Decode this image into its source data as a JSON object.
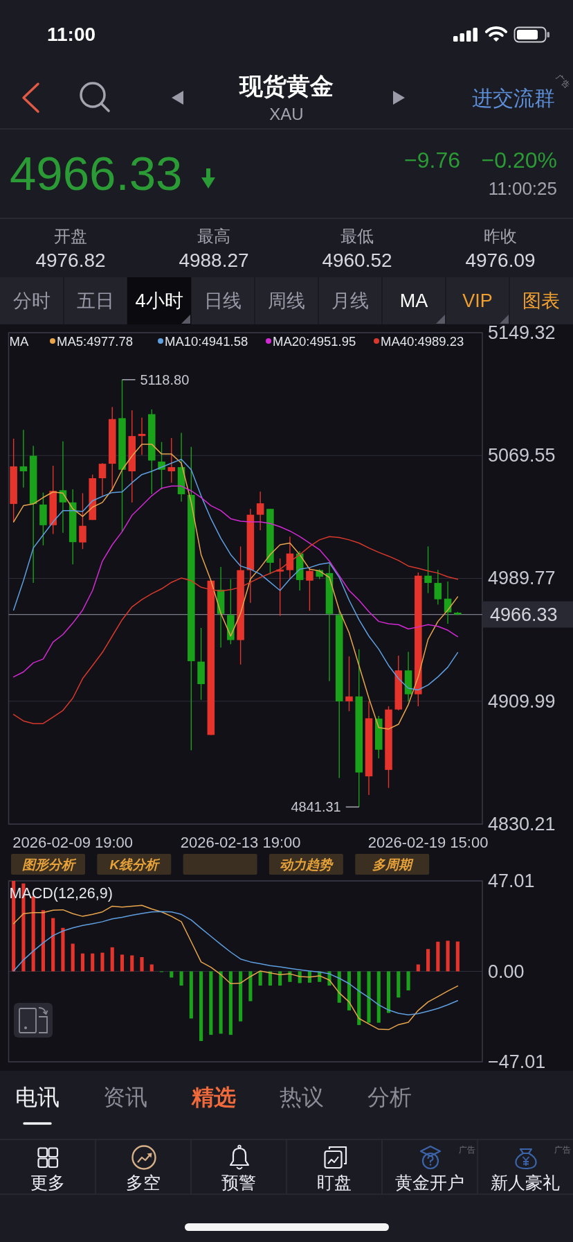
{
  "chart_data": [
    {
      "type": "other",
      "title": "现货黄金",
      "subtitle": "XAU",
      "annotations": [
        "11:00",
        "进交流群",
        "广告",
        "4966.33",
        "−9.76",
        "−0.20%",
        "11:00:25"
      ]
    },
    {
      "type": "other",
      "categories": [
        "开盘",
        "最高",
        "最低",
        "昨收"
      ],
      "values": [
        4976.82,
        4988.27,
        4960.52,
        4976.09
      ],
      "data_labels": true
    },
    {
      "type": "other",
      "annotations": [
        "分时",
        "五日",
        "4小时",
        "日线",
        "周线",
        "月线",
        "MA",
        "VIP",
        "图表"
      ]
    },
    {
      "type": "candlestick",
      "categories": [
        null,
        null,
        null,
        null,
        null,
        null,
        "2026-02-09 19:00",
        null,
        null,
        null,
        null,
        null,
        null,
        null,
        null,
        null,
        null,
        null,
        null,
        null,
        null,
        null,
        null,
        "2026-02-13 19:00",
        null,
        null,
        null,
        null,
        null,
        null,
        null,
        null,
        null,
        null,
        null,
        null,
        null,
        null,
        null,
        null,
        null,
        null,
        "2026-02-19 15:00",
        null,
        null,
        null
      ],
      "ohlc": [
        [
          5038.1,
          5080.5,
          5026.4,
          5062.5
        ],
        [
          5062.5,
          5086.2,
          5048.7,
          5059.3
        ],
        [
          5069.4,
          5075.8,
          4986.8,
          5038.1
        ],
        [
          5037.7,
          5045.5,
          5011.2,
          5024.3
        ],
        [
          5024.3,
          5062.9,
          5018.6,
          5046.6
        ],
        [
          5047.0,
          5078.8,
          5019.4,
          5039.1
        ],
        [
          5039.1,
          5047.6,
          4998.9,
          5013.3
        ],
        [
          5013.1,
          5045.1,
          5008.8,
          5023.9
        ],
        [
          5027.7,
          5057.2,
          5027.7,
          5054.8
        ],
        [
          5054.8,
          5064.6,
          5043.4,
          5064.2
        ],
        [
          5064.2,
          5101.0,
          5046.6,
          5093.2
        ],
        [
          5093.8,
          5118.8,
          5020.1,
          5060.3
        ],
        [
          5059.3,
          5098.9,
          5039.1,
          5082.2
        ],
        [
          5082.2,
          5094.2,
          5069.9,
          5083.6
        ],
        [
          5096.4,
          5099.5,
          5044.4,
          5066.3
        ],
        [
          5065.6,
          5078.3,
          5047.6,
          5060.3
        ],
        [
          5059.3,
          5080.9,
          5051.9,
          5062.0
        ],
        [
          5062.0,
          5084.3,
          5039.6,
          5044.4
        ],
        [
          5044.0,
          5075.2,
          4878.1,
          4936.0
        ],
        [
          4935.7,
          4957.6,
          4910.9,
          4921.1
        ],
        [
          4888.1,
          4988.3,
          4888.1,
          4988.3
        ],
        [
          4982.4,
          4997.2,
          4944.9,
          4966.7
        ],
        [
          4966.0,
          4989.3,
          4947.0,
          4949.7
        ],
        [
          4949.7,
          5010.5,
          4933.8,
          4995.1
        ],
        [
          4995.1,
          5034.9,
          4973.9,
          5031.1
        ],
        [
          5031.1,
          5046.1,
          5021.1,
          5038.5
        ],
        [
          5034.9,
          5034.9,
          4992.5,
          4999.9
        ],
        [
          4994.2,
          5002.7,
          4965.4,
          4995.5
        ],
        [
          4995.1,
          5016.9,
          4989.3,
          5005.9
        ],
        [
          5005.9,
          5007.4,
          4981.9,
          4988.7
        ],
        [
          4988.3,
          4996.8,
          4968.8,
          4994.6
        ],
        [
          4995.1,
          4995.7,
          4989.3,
          4990.8
        ],
        [
          4993.2,
          4998.9,
          4923.0,
          4966.7
        ],
        [
          4966.0,
          4969.2,
          4860.1,
          4909.9
        ],
        [
          4909.9,
          4939.1,
          4903.5,
          4913.1
        ],
        [
          4913.1,
          4943.8,
          4841.31,
          4863.7
        ],
        [
          4861.2,
          4909.9,
          4849.1,
          4898.9
        ],
        [
          4898.7,
          4900.4,
          4872.8,
          4878.5
        ],
        [
          4865.4,
          4906.7,
          4853.7,
          4904.6
        ],
        [
          4904.6,
          4939.6,
          4904.0,
          4930.0
        ],
        [
          4930.0,
          4942.1,
          4909.9,
          4914.5
        ],
        [
          4914.5,
          4993.6,
          4906.7,
          4991.5
        ],
        [
          4991.5,
          5010.5,
          4980.2,
          4986.8
        ],
        [
          4986.8,
          4995.3,
          4972.8,
          4976.2
        ],
        [
          4976.6,
          4987.7,
          4960.3,
          4967.7
        ],
        [
          4967.5,
          4968.0,
          4966.0,
          4966.33
        ]
      ],
      "colors": [
        "#e5342b",
        "#1aa31a",
        "#1aa31a",
        "#1aa31a",
        "#e5342b",
        "#1aa31a",
        "#1aa31a",
        "#e5342b",
        "#e5342b",
        "#e5342b",
        "#e5342b",
        "#1aa31a",
        "#e5342b",
        "#e5342b",
        "#1aa31a",
        "#1aa31a",
        "#e5342b",
        "#1aa31a",
        "#1aa31a",
        "#1aa31a",
        "#e5342b",
        "#1aa31a",
        "#1aa31a",
        "#e5342b",
        "#e5342b",
        "#e5342b",
        "#1aa31a",
        "#e5342b",
        "#e5342b",
        "#1aa31a",
        "#e5342b",
        "#1aa31a",
        "#1aa31a",
        "#1aa31a",
        "#e5342b",
        "#1aa31a",
        "#e5342b",
        "#1aa31a",
        "#e5342b",
        "#e5342b",
        "#1aa31a",
        "#e5342b",
        "#1aa31a",
        "#1aa31a",
        "#1aa31a",
        "#1aa31a"
      ],
      "series": [
        {
          "type": "line",
          "name": "MA5:4977.78",
          "color": "#e8a54c",
          "values": [
            5026.4,
            5037.0,
            5038.1,
            5042.3,
            5045.9,
            5045.1,
            5034.9,
            5030.0,
            5036.0,
            5039.1,
            5047.6,
            5060.3,
            5069.2,
            5076.9,
            5076.9,
            5070.5,
            5070.5,
            5064.6,
            5039.1,
            5005.2,
            4988.3,
            4967.1,
            4952.3,
            4967.1,
            4989.3,
            4996.8,
            5005.2,
            5011.6,
            5012.7,
            5005.2,
            4995.7,
            4994.6,
            4990.4,
            4969.2,
            4954.4,
            4933.2,
            4912.0,
            4892.9,
            4891.9,
            4895.0,
            4907.8,
            4925.8,
            4950.2,
            4961.8,
            4969.2,
            4977.78
          ]
        },
        {
          "type": "line",
          "name": "MA10:4941.58",
          "color": "#5f9fe0",
          "values": [
            4969.2,
            4988.3,
            5009.5,
            5018.0,
            5026.4,
            5033.8,
            5033.8,
            5033.2,
            5040.2,
            5043.0,
            5045.5,
            5045.9,
            5051.9,
            5057.2,
            5059.3,
            5062.0,
            5064.6,
            5067.1,
            5060.3,
            5043.4,
            5028.5,
            5015.8,
            5005.2,
            4997.8,
            4995.7,
            4992.5,
            4987.2,
            4981.9,
            4989.3,
            4995.7,
            4996.8,
            4998.9,
            4999.9,
            4990.4,
            4975.6,
            4962.9,
            4952.3,
            4943.8,
            4933.2,
            4924.7,
            4918.4,
            4917.3,
            4920.5,
            4925.8,
            4932.1,
            4941.58
          ]
        },
        {
          "type": "line",
          "name": "MA20:4951.95",
          "color": "#d42ad4",
          "values": [
            4925.8,
            4929.0,
            4934.9,
            4937.4,
            4948.4,
            4953.3,
            4960.7,
            4969.2,
            4981.9,
            5001.0,
            5011.6,
            5020.1,
            5030.7,
            5037.0,
            5043.4,
            5048.3,
            5049.7,
            5049.7,
            5046.6,
            5042.3,
            5037.0,
            5033.8,
            5028.5,
            5026.9,
            5026.4,
            5026.4,
            5025.4,
            5023.3,
            5020.5,
            5016.9,
            5012.7,
            5008.4,
            5001.0,
            4991.5,
            4981.9,
            4975.6,
            4968.2,
            4961.8,
            4960.3,
            4959.7,
            4956.9,
            4958.2,
            4959.7,
            4958.6,
            4956.1,
            4951.95
          ]
        },
        {
          "type": "line",
          "name": "MA40:4989.23",
          "color": "#d8392c",
          "values": [
            4901.4,
            4897.2,
            4895.5,
            4895.5,
            4899.7,
            4904.0,
            4912.0,
            4924.7,
            4933.2,
            4941.7,
            4952.3,
            4962.9,
            4971.3,
            4976.0,
            4979.8,
            4983.0,
            4987.2,
            4990.0,
            4988.3,
            4984.0,
            4982.4,
            4981.5,
            4982.4,
            4984.0,
            4987.2,
            4990.4,
            4993.0,
            4995.7,
            5000.6,
            5005.2,
            5010.5,
            5014.8,
            5016.9,
            5016.3,
            5014.8,
            5012.7,
            5009.5,
            5006.7,
            5004.2,
            5001.4,
            4997.8,
            4996.3,
            4994.6,
            4993.2,
            4990.8,
            4989.23
          ]
        }
      ],
      "legend_title": "MA",
      "legend": "top left",
      "ylim": [
        4830.21,
        5149.32
      ],
      "yticks": [
        4830.21,
        4909.99,
        4989.77,
        5069.55,
        5149.32
      ],
      "grid": "y",
      "ref_lines": [
        {
          "axis": "y",
          "value": 4966.33,
          "label": "4966.33",
          "color": "#7c7c8a"
        }
      ],
      "annotations": [
        "5118.80",
        "4841.31"
      ]
    },
    {
      "type": "other",
      "annotations": [
        "图形分析",
        "K线分析",
        "动力趋势",
        "多周期"
      ]
    },
    {
      "type": "bar",
      "title": "MACD(12,26,9)",
      "categories": [
        null,
        null,
        null,
        null,
        null,
        null,
        null,
        null,
        null,
        null,
        null,
        null,
        null,
        null,
        null,
        null,
        null,
        null,
        null,
        null,
        null,
        null,
        null,
        null,
        null,
        null,
        null,
        null,
        null,
        null,
        null,
        null,
        null,
        null,
        null,
        null,
        null,
        null,
        null,
        null,
        null,
        null,
        null,
        null,
        null,
        null
      ],
      "series": [
        {
          "type": "bar",
          "values": [
            47.0,
            45.7,
            39.0,
            31.8,
            27.7,
            22.6,
            14.4,
            9.3,
            9.3,
            9.7,
            12.5,
            8.7,
            8.3,
            7.4,
            3.6,
            -0.4,
            -3.2,
            -7.4,
            -24.5,
            -36.2,
            -33.0,
            -32.4,
            -33.0,
            -26.0,
            -15.5,
            -7.4,
            -7.4,
            -7.4,
            -5.5,
            -6.1,
            -5.9,
            -5.5,
            -7.4,
            -16.3,
            -20.3,
            -27.9,
            -26.7,
            -26.7,
            -21.6,
            -13.6,
            -9.9,
            3.6,
            11.6,
            15.4,
            15.9,
            15.5
          ],
          "colors": [
            "#e5342b",
            "#e5342b",
            "#e5342b",
            "#e5342b",
            "#e5342b",
            "#e5342b",
            "#e5342b",
            "#e5342b",
            "#e5342b",
            "#e5342b",
            "#e5342b",
            "#e5342b",
            "#e5342b",
            "#e5342b",
            "#e5342b",
            "#1aa31a",
            "#1aa31a",
            "#1aa31a",
            "#1aa31a",
            "#1aa31a",
            "#1aa31a",
            "#1aa31a",
            "#1aa31a",
            "#1aa31a",
            "#1aa31a",
            "#1aa31a",
            "#1aa31a",
            "#1aa31a",
            "#1aa31a",
            "#1aa31a",
            "#1aa31a",
            "#1aa31a",
            "#1aa31a",
            "#1aa31a",
            "#1aa31a",
            "#1aa31a",
            "#1aa31a",
            "#1aa31a",
            "#1aa31a",
            "#1aa31a",
            "#1aa31a",
            "#e5342b",
            "#e5342b",
            "#e5342b",
            "#e5342b",
            "#e5342b"
          ]
        },
        {
          "type": "line",
          "color": "#e8a54c",
          "values": [
            24.8,
            30.0,
            30.5,
            30.5,
            31.8,
            32.0,
            30.0,
            28.6,
            29.6,
            30.9,
            33.9,
            33.4,
            33.9,
            34.3,
            32.4,
            30.9,
            28.6,
            25.8,
            15.4,
            4.9,
            2.1,
            -1.7,
            -6.4,
            -6.1,
            -2.7,
            0.2,
            -0.8,
            -1.7,
            -1.3,
            -2.7,
            -3.0,
            -2.3,
            -4.5,
            -11.2,
            -15.9,
            -24.5,
            -27.3,
            -30.1,
            -30.3,
            -27.7,
            -26.5,
            -20.3,
            -15.9,
            -13.1,
            -10.2,
            -7.6
          ]
        },
        {
          "type": "line",
          "color": "#5f9fe0",
          "values": [
            0.2,
            5.9,
            10.6,
            14.8,
            18.6,
            21.0,
            22.6,
            23.9,
            24.8,
            25.8,
            27.3,
            28.1,
            29.2,
            30.1,
            30.9,
            31.1,
            30.9,
            29.6,
            26.7,
            22.4,
            18.2,
            14.0,
            10.0,
            6.4,
            4.9,
            4.0,
            3.0,
            2.3,
            1.5,
            0.8,
            0.2,
            -0.4,
            -1.3,
            -3.6,
            -6.4,
            -10.2,
            -13.6,
            -17.4,
            -20.1,
            -21.8,
            -22.6,
            -22.0,
            -20.7,
            -19.3,
            -17.4,
            -15.2
          ]
        }
      ],
      "ylim": [
        -47.01,
        47.01
      ],
      "yticks": [
        {
          "value": -47.01,
          "label": "−47.01"
        },
        {
          "value": 0,
          "label": "0.00"
        },
        47.01
      ],
      "grid": "y"
    },
    {
      "type": "other",
      "annotations": [
        "电讯",
        "资讯",
        "精选",
        "热议",
        "分析",
        "更多",
        "多空",
        "预警",
        "盯盘",
        "黄金开户",
        "新人豪礼",
        "广告",
        "广告"
      ]
    }
  ]
}
